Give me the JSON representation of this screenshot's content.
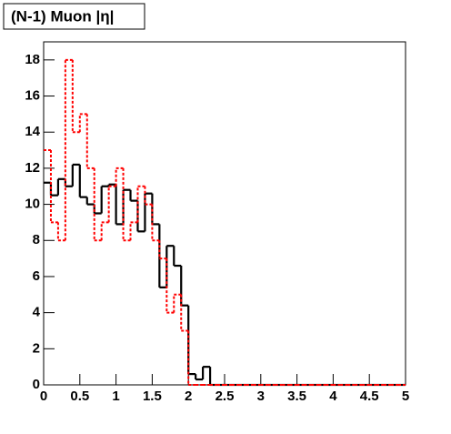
{
  "chart_data": {
    "type": "histogram",
    "title": "(N-1) Muon |η|",
    "bins": [
      0,
      0.1,
      0.2,
      0.3,
      0.4,
      0.5,
      0.6,
      0.7,
      0.8,
      0.9,
      1,
      1.1,
      1.2,
      1.3,
      1.4,
      1.5,
      1.6,
      1.7,
      1.8,
      1.9,
      2,
      2.1,
      2.2,
      2.3,
      2.4,
      2.5,
      2.6,
      2.7,
      2.8,
      2.9,
      3,
      3.1,
      3.2,
      3.3,
      3.4,
      3.5,
      3.6,
      3.7,
      3.8,
      3.9,
      4,
      4.1,
      4.2,
      4.3,
      4.4,
      4.5,
      4.6,
      4.7,
      4.8,
      4.9,
      5
    ],
    "series": [
      {
        "color": "#000000",
        "line_style": "solid",
        "values": [
          11.2,
          10.5,
          11.4,
          11,
          12.2,
          10.4,
          10,
          9.5,
          11,
          11.1,
          8.9,
          10.8,
          10.2,
          8.5,
          10.6,
          8.9,
          5.4,
          7.7,
          6.6,
          4.4,
          0.6,
          0.3,
          1,
          0,
          0,
          0,
          0,
          0,
          0,
          0,
          0,
          0,
          0,
          0,
          0,
          0,
          0,
          0,
          0,
          0,
          0,
          0,
          0,
          0,
          0,
          0,
          0,
          0,
          0,
          0
        ]
      },
      {
        "color": "#ff0000",
        "line_style": "dotted",
        "values": [
          13,
          9,
          8,
          18,
          14,
          15,
          12,
          8,
          9,
          11,
          12,
          8,
          9,
          11,
          10,
          8,
          7,
          4,
          5,
          3,
          0,
          0,
          0,
          0,
          0,
          0,
          0,
          0,
          0,
          0,
          0,
          0,
          0,
          0,
          0,
          0,
          0,
          0,
          0,
          0,
          0,
          0,
          0,
          0,
          0,
          0,
          0,
          0,
          0,
          0
        ]
      }
    ],
    "xlim": [
      0,
      5
    ],
    "xticks": [
      0,
      0.5,
      1,
      1.5,
      2,
      2.5,
      3,
      3.5,
      4,
      4.5,
      5
    ],
    "ylim": [
      0,
      19
    ],
    "yticks": [
      0,
      2,
      4,
      6,
      8,
      10,
      12,
      14,
      16,
      18
    ]
  }
}
